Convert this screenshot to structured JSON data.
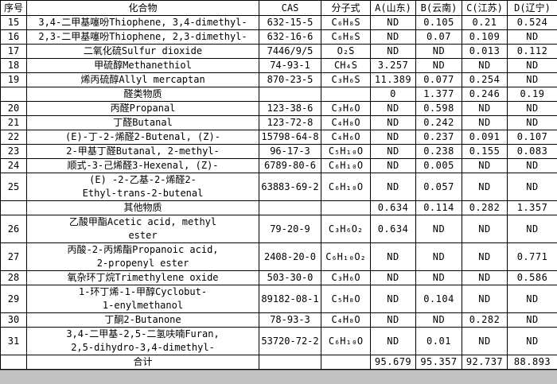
{
  "table": {
    "columns": [
      "序号",
      "化合物",
      "CAS",
      "分子式",
      "A(山东)",
      "B(云南)",
      "C(江苏)",
      "D(辽宁)"
    ],
    "rows": [
      {
        "kind": "data",
        "no": "15",
        "compound": "3,4-二甲基噻吩Thiophene, 3,4-dimethyl-",
        "cas": "632-15-5",
        "formula": "C₆H₈S",
        "values": [
          "ND",
          "0.105",
          "0.21",
          "0.524"
        ]
      },
      {
        "kind": "data",
        "no": "16",
        "compound": "2,3-二甲基噻吩Thiophene, 2,3-dimethyl-",
        "cas": "632-16-6",
        "formula": "C₆H₈S",
        "values": [
          "ND",
          "0.07",
          "0.109",
          "ND"
        ]
      },
      {
        "kind": "data",
        "no": "17",
        "compound": "二氧化硫Sulfur dioxide",
        "cas": "7446/9/5",
        "formula": "O₂S",
        "values": [
          "ND",
          "ND",
          "0.013",
          "0.112"
        ]
      },
      {
        "kind": "data",
        "no": "18",
        "compound": "甲硫醇Methanethiol",
        "cas": "74-93-1",
        "formula": "CH₄S",
        "values": [
          "3.257",
          "ND",
          "ND",
          "ND"
        ]
      },
      {
        "kind": "data",
        "no": "19",
        "compound": "烯丙硫醇Allyl mercaptan",
        "cas": "870-23-5",
        "formula": "C₃H₆S",
        "values": [
          "11.389",
          "0.077",
          "0.254",
          "ND"
        ]
      },
      {
        "kind": "section",
        "no": "",
        "compound": "醛类物质",
        "cas": "",
        "formula": "",
        "values": [
          "0",
          "1.377",
          "0.246",
          "0.19"
        ]
      },
      {
        "kind": "data",
        "no": "20",
        "compound": "丙醛Propanal",
        "cas": "123-38-6",
        "formula": "C₃H₆O",
        "values": [
          "ND",
          "0.598",
          "ND",
          "ND"
        ]
      },
      {
        "kind": "data",
        "no": "21",
        "compound": "丁醛Butanal",
        "cas": "123-72-8",
        "formula": "C₄H₈O",
        "values": [
          "ND",
          "0.242",
          "ND",
          "ND"
        ]
      },
      {
        "kind": "data",
        "no": "22",
        "compound": "(E)-丁-2-烯醛2-Butenal, (Z)-",
        "cas": "15798-64-8",
        "formula": "C₄H₆O",
        "values": [
          "ND",
          "0.237",
          "0.091",
          "0.107"
        ]
      },
      {
        "kind": "data",
        "no": "23",
        "compound": "2-甲基丁醛Butanal, 2-methyl-",
        "cas": "96-17-3",
        "formula": "C₅H₁₀O",
        "values": [
          "ND",
          "0.238",
          "0.155",
          "0.083"
        ]
      },
      {
        "kind": "data",
        "no": "24",
        "compound": "顺式-3-己烯醛3-Hexenal, (Z)-",
        "cas": "6789-80-6",
        "formula": "C₆H₁₀O",
        "values": [
          "ND",
          "0.005",
          "ND",
          "ND"
        ]
      },
      {
        "kind": "data",
        "no": "25",
        "compound": "(E) -2-乙基-2-烯醛2-\nEthyl-trans-2-butenal",
        "cas": "63883-69-2",
        "formula": "C₆H₁₀O",
        "values": [
          "ND",
          "0.057",
          "ND",
          "ND"
        ]
      },
      {
        "kind": "section",
        "no": "",
        "compound": "其他物质",
        "cas": "",
        "formula": "",
        "values": [
          "0.634",
          "0.114",
          "0.282",
          "1.357"
        ]
      },
      {
        "kind": "data",
        "no": "26",
        "compound": "乙酸甲酯Acetic acid, methyl\nester",
        "cas": "79-20-9",
        "formula": "C₃H₆O₂",
        "values": [
          "0.634",
          "ND",
          "ND",
          "ND"
        ]
      },
      {
        "kind": "data",
        "no": "27",
        "compound": "丙酸-2-丙烯酯Propanoic acid,\n2-propenyl ester",
        "cas": "2408-20-0",
        "formula": "C₆H₁₀O₂",
        "values": [
          "ND",
          "ND",
          "ND",
          "0.771"
        ]
      },
      {
        "kind": "data",
        "no": "28",
        "compound": "氧杂环丁烷Trimethylene oxide",
        "cas": "503-30-0",
        "formula": "C₃H₆O",
        "values": [
          "ND",
          "ND",
          "ND",
          "0.586"
        ]
      },
      {
        "kind": "data",
        "no": "29",
        "compound": "1-环丁烯-1-甲醇Cyclobut-\n1-enylmethanol",
        "cas": "89182-08-1",
        "formula": "C₅H₈O",
        "values": [
          "ND",
          "0.104",
          "ND",
          "ND"
        ]
      },
      {
        "kind": "data",
        "no": "30",
        "compound": "丁酮2-Butanone",
        "cas": "78-93-3",
        "formula": "C₄H₈O",
        "values": [
          "ND",
          "ND",
          "0.282",
          "ND"
        ]
      },
      {
        "kind": "data",
        "no": "31",
        "compound": "3,4-二甲基-2,5-二氢呋喃Furan,\n2,5-dihydro-3,4-dimethyl-",
        "cas": "53720-72-2",
        "formula": "C₆H₁₀O",
        "values": [
          "ND",
          "0.01",
          "ND",
          "ND"
        ]
      },
      {
        "kind": "total",
        "no": "",
        "compound": "合计",
        "cas": "",
        "formula": "",
        "values": [
          "95.679",
          "95.357",
          "92.737",
          "88.893"
        ]
      }
    ]
  }
}
